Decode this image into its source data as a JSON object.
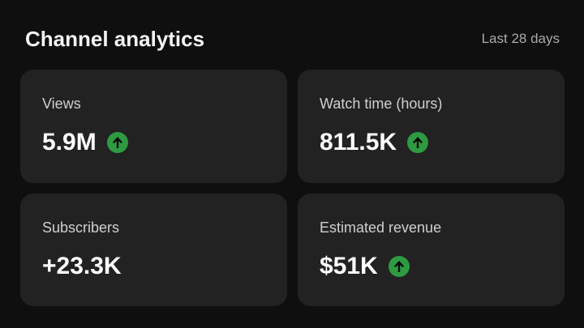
{
  "header": {
    "title": "Channel analytics",
    "range": "Last 28 days"
  },
  "colors": {
    "background": "#0f0f0f",
    "card": "#222222",
    "trend_up": "#2e9a42"
  },
  "cards": [
    {
      "label": "Views",
      "value": "5.9M",
      "trend": "up",
      "trend_icon": "arrow-up-circle-icon"
    },
    {
      "label": "Watch time (hours)",
      "value": "811.5K",
      "trend": "up",
      "trend_icon": "arrow-up-circle-icon"
    },
    {
      "label": "Subscribers",
      "value": "+23.3K",
      "trend": "none"
    },
    {
      "label": "Estimated revenue",
      "value": "$51K",
      "trend": "up",
      "trend_icon": "arrow-up-circle-icon"
    }
  ]
}
